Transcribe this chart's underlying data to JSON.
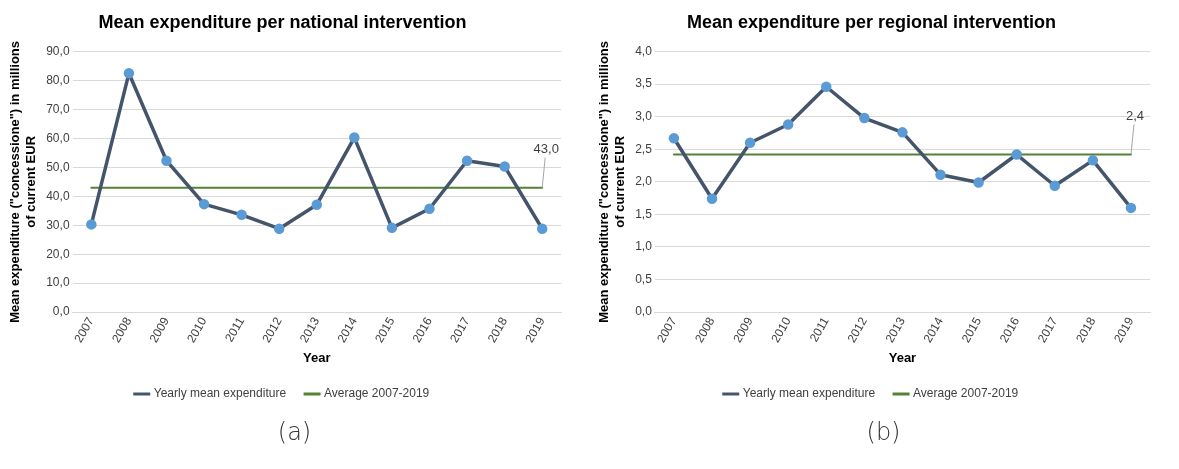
{
  "chart_data": [
    {
      "type": "line",
      "title": "Mean expenditure per national intervention",
      "xlabel": "Year",
      "ylabel": "Mean expenditure (\"concessione\") in millions of current EUR",
      "categories": [
        "2007",
        "2008",
        "2009",
        "2010",
        "2011",
        "2012",
        "2013",
        "2014",
        "2015",
        "2016",
        "2017",
        "2018",
        "2019"
      ],
      "series": [
        {
          "name": "Yearly mean expenditure",
          "color": "#44546a",
          "values": [
            30.3,
            82.5,
            52.3,
            37.3,
            33.6,
            28.8,
            37.1,
            60.3,
            29.1,
            35.7,
            52.3,
            50.3,
            28.8
          ]
        },
        {
          "name": "Average 2007-2019",
          "color": "#548235",
          "marker": "none",
          "values": [
            43.0,
            43.0,
            43.0,
            43.0,
            43.0,
            43.0,
            43.0,
            43.0,
            43.0,
            43.0,
            43.0,
            43.0,
            43.0
          ],
          "value_labels": [
            null,
            null,
            null,
            null,
            null,
            null,
            null,
            null,
            null,
            null,
            null,
            null,
            "43,0"
          ]
        }
      ],
      "ylim": [
        0,
        90
      ],
      "yticks": [
        {
          "value": 0,
          "label": "0,0"
        },
        {
          "value": 10,
          "label": "10,0"
        },
        {
          "value": 20,
          "label": "20,0"
        },
        {
          "value": 30,
          "label": "30,0"
        },
        {
          "value": 40,
          "label": "40,0"
        },
        {
          "value": 50,
          "label": "50,0"
        },
        {
          "value": 60,
          "label": "60,0"
        },
        {
          "value": 70,
          "label": "70,0"
        },
        {
          "value": 80,
          "label": "80,0"
        },
        {
          "value": 90,
          "label": "90,0"
        }
      ],
      "grid": "y",
      "legend": "bottom",
      "marker": "circle",
      "line_style": "solid",
      "annotations": [
        "(a)"
      ]
    },
    {
      "type": "line",
      "title": "Mean expenditure per regional intervention",
      "xlabel": "Year",
      "ylabel": "Mean expenditure (\"concessione\") in millions of current EUR",
      "categories": [
        "2007",
        "2008",
        "2009",
        "2010",
        "2011",
        "2012",
        "2013",
        "2014",
        "2015",
        "2016",
        "2017",
        "2018",
        "2019"
      ],
      "series": [
        {
          "name": "Yearly mean expenditure",
          "color": "#44546a",
          "values": [
            2.67,
            1.74,
            2.6,
            2.88,
            3.46,
            2.98,
            2.76,
            2.11,
            1.99,
            2.42,
            1.94,
            2.33,
            1.6
          ]
        },
        {
          "name": "Average 2007-2019",
          "color": "#548235",
          "marker": "none",
          "values": [
            2.42,
            2.42,
            2.42,
            2.42,
            2.42,
            2.42,
            2.42,
            2.42,
            2.42,
            2.42,
            2.42,
            2.42,
            2.42
          ],
          "value_labels": [
            null,
            null,
            null,
            null,
            null,
            null,
            null,
            null,
            null,
            null,
            null,
            null,
            "2,4"
          ]
        }
      ],
      "ylim": [
        0,
        4
      ],
      "yticks": [
        {
          "value": 0,
          "label": "0,0"
        },
        {
          "value": 0.5,
          "label": "0,5"
        },
        {
          "value": 1,
          "label": "1,0"
        },
        {
          "value": 1.5,
          "label": "1,5"
        },
        {
          "value": 2,
          "label": "2,0"
        },
        {
          "value": 2.5,
          "label": "2,5"
        },
        {
          "value": 3,
          "label": "3,0"
        },
        {
          "value": 3.5,
          "label": "3,5"
        },
        {
          "value": 4,
          "label": "4,0"
        }
      ],
      "grid": "y",
      "legend": "bottom",
      "marker": "circle",
      "line_style": "solid",
      "annotations": [
        "(b)"
      ]
    }
  ]
}
